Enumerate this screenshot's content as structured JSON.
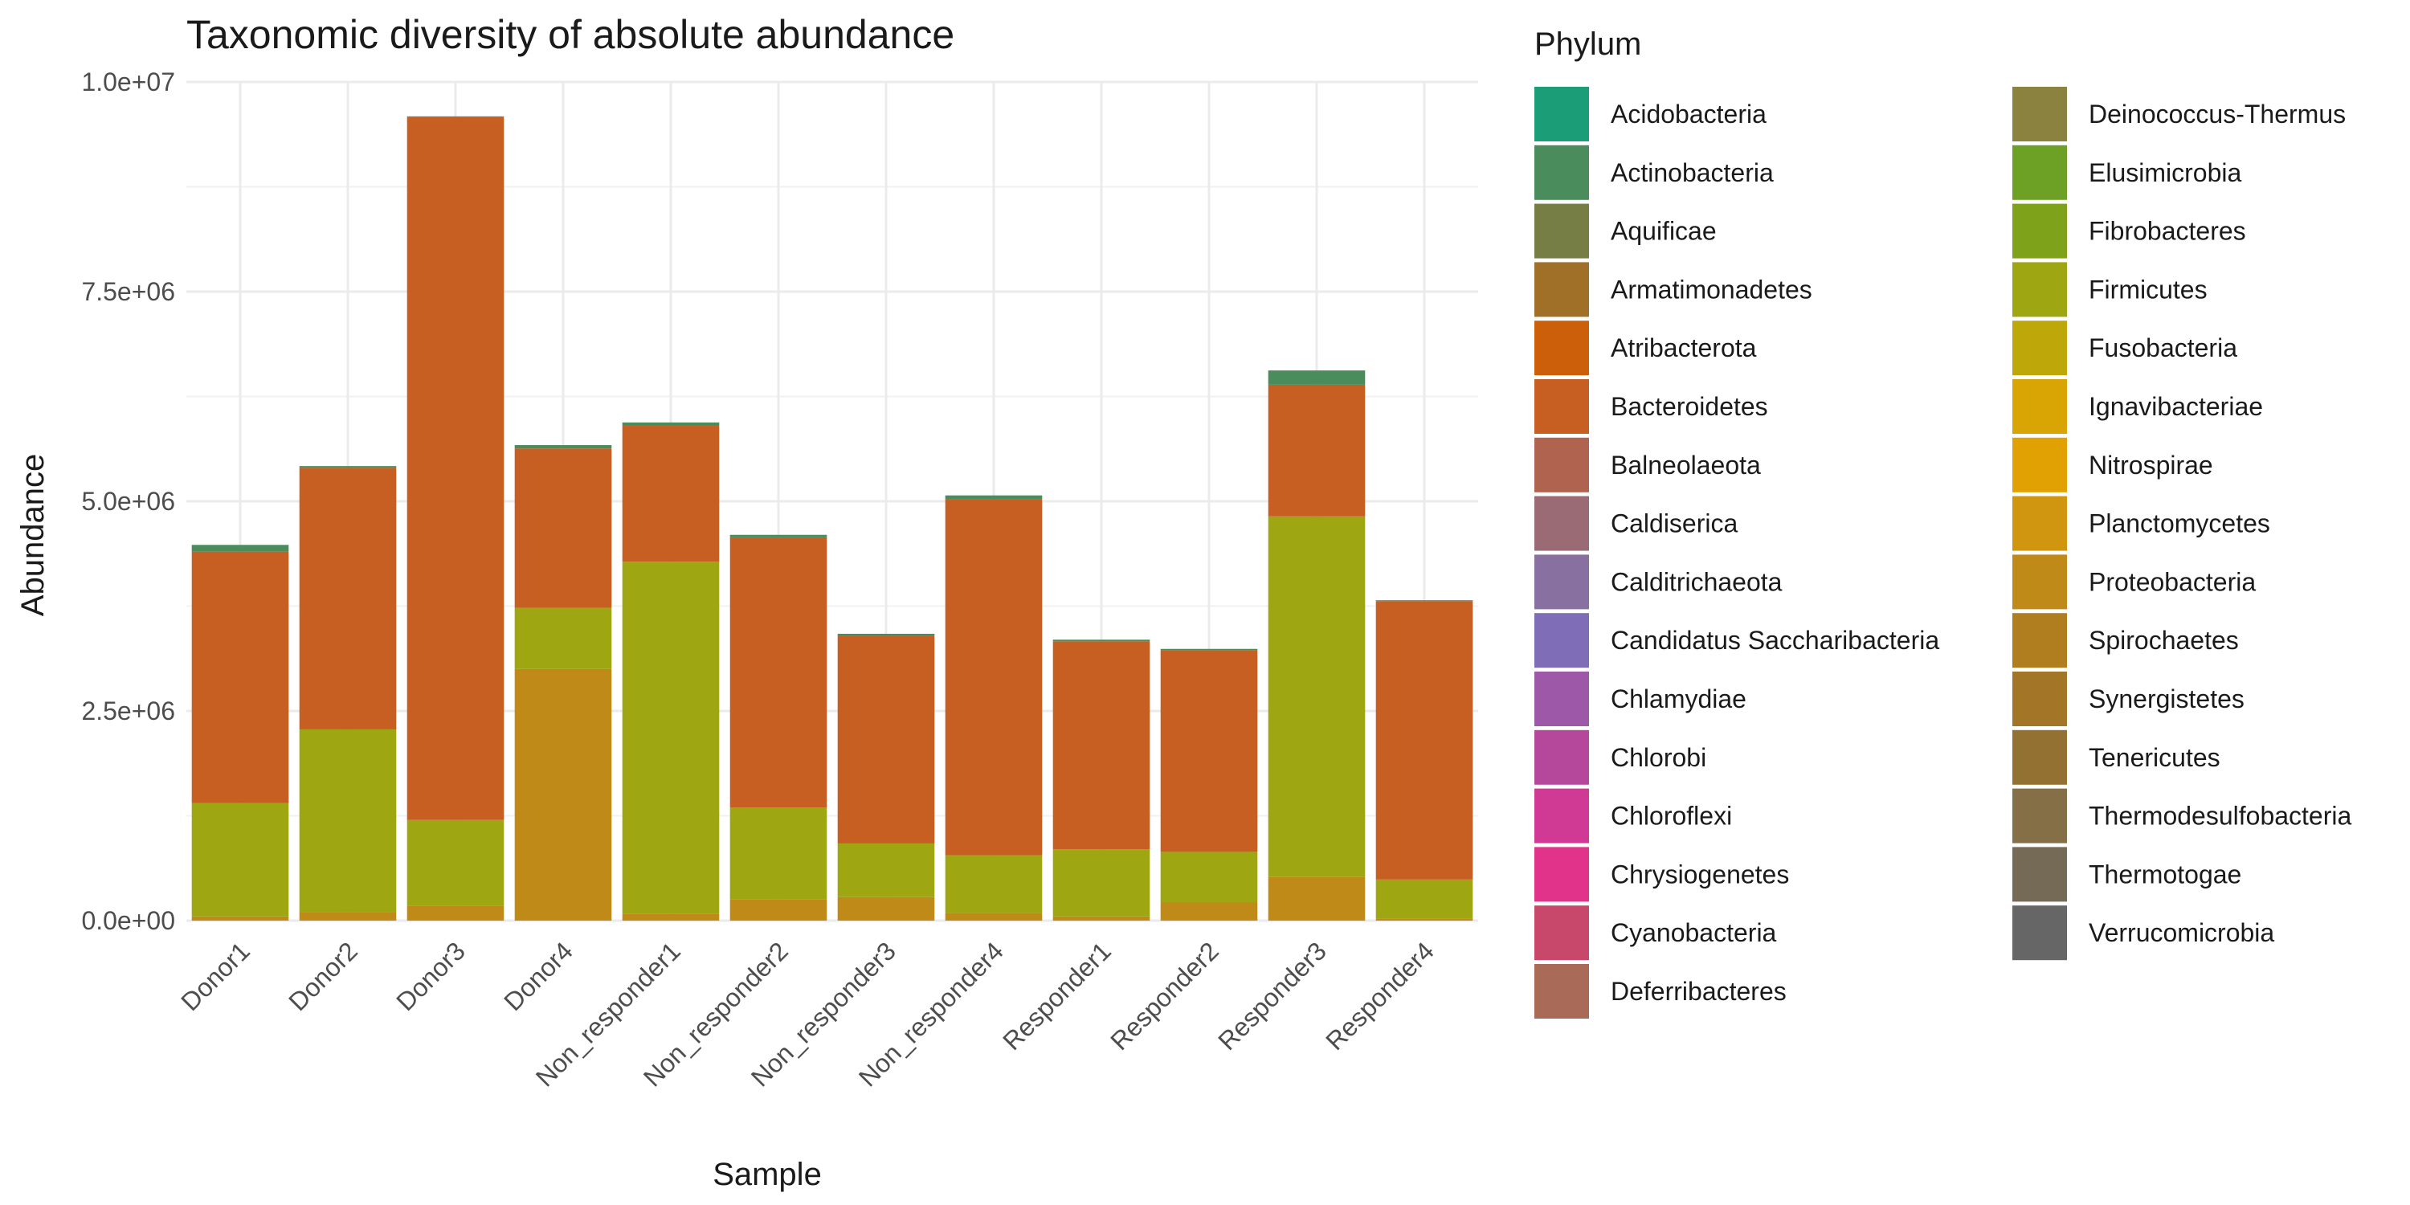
{
  "chart_data": {
    "type": "bar",
    "stacked": true,
    "title": "Taxonomic diversity of absolute abundance",
    "xlabel": "Sample",
    "ylabel": "Abundance",
    "ylim": [
      0,
      10000000
    ],
    "y_ticks": [
      {
        "value": 0,
        "label": "0.0e+00"
      },
      {
        "value": 2500000,
        "label": "2.5e+06"
      },
      {
        "value": 5000000,
        "label": "5.0e+06"
      },
      {
        "value": 7500000,
        "label": "7.5e+06"
      },
      {
        "value": 10000000,
        "label": "1.0e+07"
      }
    ],
    "grid": true,
    "legend_title": "Phylum",
    "legend_position": "right",
    "categories": [
      "Donor1",
      "Donor2",
      "Donor3",
      "Donor4",
      "Non_responder1",
      "Non_responder2",
      "Non_responder3",
      "Non_responder4",
      "Responder1",
      "Responder2",
      "Responder3",
      "Responder4"
    ],
    "legend": [
      {
        "name": "Acidobacteria",
        "color": "#1B9E77"
      },
      {
        "name": "Actinobacteria",
        "color": "#4A8C5C"
      },
      {
        "name": "Aquificae",
        "color": "#767E45"
      },
      {
        "name": "Armatimonadetes",
        "color": "#A07028"
      },
      {
        "name": "Atribacterota",
        "color": "#CC600A"
      },
      {
        "name": "Bacteroidetes",
        "color": "#C85F22"
      },
      {
        "name": "Balneolaeota",
        "color": "#B06450"
      },
      {
        "name": "Caldiserica",
        "color": "#9A6A75"
      },
      {
        "name": "Calditrichaeota",
        "color": "#8870A0"
      },
      {
        "name": "Candidatus Saccharibacteria",
        "color": "#7F6DB7"
      },
      {
        "name": "Chlamydiae",
        "color": "#9E58A8"
      },
      {
        "name": "Chlorobi",
        "color": "#B6489C"
      },
      {
        "name": "Chloroflexi",
        "color": "#D03A95"
      },
      {
        "name": "Chrysiogenetes",
        "color": "#E2338A"
      },
      {
        "name": "Cyanobacteria",
        "color": "#C7486B"
      },
      {
        "name": "Deferribacteres",
        "color": "#A96B58"
      },
      {
        "name": "Deinococcus-Thermus",
        "color": "#8B8240"
      },
      {
        "name": "Elusimicrobia",
        "color": "#6DA125"
      },
      {
        "name": "Fibrobacteres",
        "color": "#7EA31B"
      },
      {
        "name": "Firmicutes",
        "color": "#9EA712"
      },
      {
        "name": "Fusobacteria",
        "color": "#BDA709"
      },
      {
        "name": "Ignavibacteriae",
        "color": "#D8A504"
      },
      {
        "name": "Nitrospirae",
        "color": "#E1A103"
      },
      {
        "name": "Planctomycetes",
        "color": "#D09610"
      },
      {
        "name": "Proteobacteria",
        "color": "#BF8A17"
      },
      {
        "name": "Spirochaetes",
        "color": "#B07E1E"
      },
      {
        "name": "Synergistetes",
        "color": "#A27527"
      },
      {
        "name": "Tenericutes",
        "color": "#937132"
      },
      {
        "name": "Thermodesulfobacteria",
        "color": "#856F47"
      },
      {
        "name": "Thermotogae",
        "color": "#756A56"
      },
      {
        "name": "Verrucomicrobia",
        "color": "#666666"
      }
    ],
    "series": [
      {
        "name": "Proteobacteria",
        "values": [
          50000,
          100000,
          180000,
          3000000,
          80000,
          250000,
          280000,
          90000,
          50000,
          220000,
          520000,
          20000
        ]
      },
      {
        "name": "Firmicutes",
        "values": [
          1350000,
          2180000,
          1020000,
          730000,
          4200000,
          1100000,
          640000,
          690000,
          800000,
          600000,
          4300000,
          470000
        ]
      },
      {
        "name": "Bacteroidetes",
        "values": [
          3000000,
          3120000,
          8380000,
          1900000,
          1620000,
          3220000,
          2480000,
          4240000,
          2480000,
          2400000,
          1570000,
          3320000
        ]
      },
      {
        "name": "Actinobacteria",
        "values": [
          80000,
          20000,
          10000,
          40000,
          40000,
          30000,
          20000,
          50000,
          20000,
          20000,
          170000,
          10000
        ]
      }
    ]
  }
}
